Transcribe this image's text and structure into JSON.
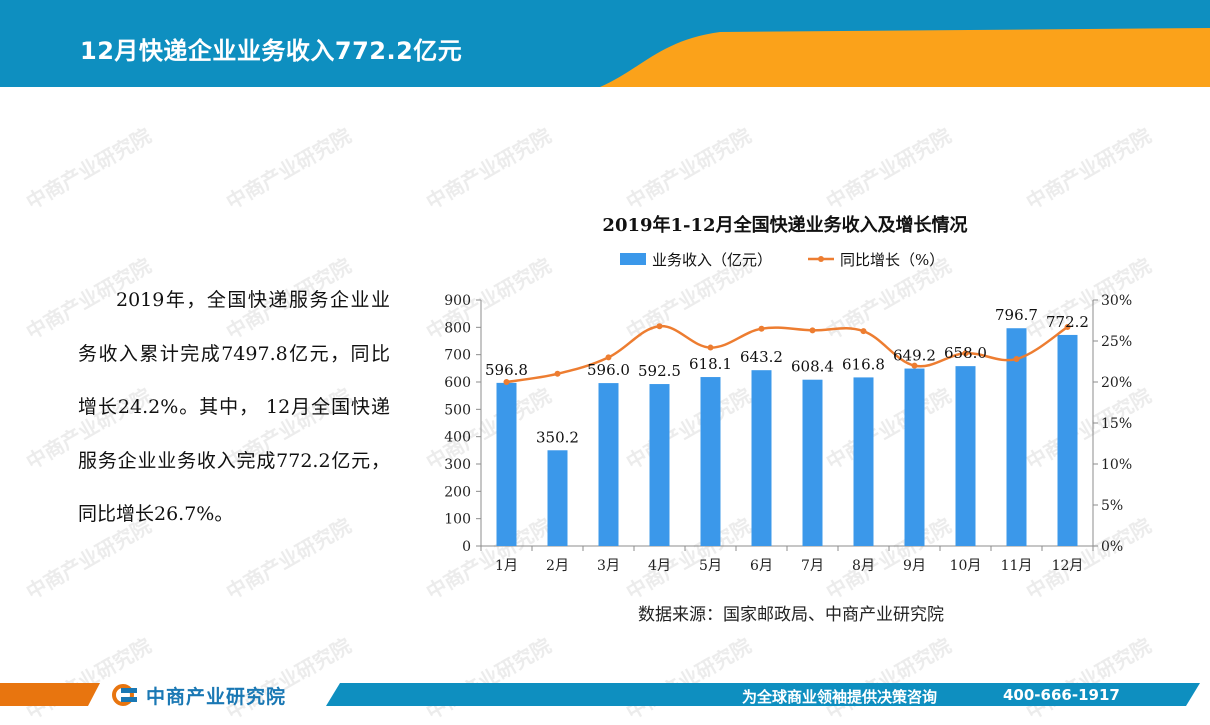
{
  "header": {
    "title": "12月快递企业业务收入772.2亿元",
    "colors": {
      "blue": "#0e8fc0",
      "orange": "#fba21a"
    }
  },
  "body_text": "2019年，全国快递服务企业业务收入累计完成7497.8亿元，同比增长24.2%。其中，  12月全国快递服务企业业务收入完成772.2亿元，同比增长26.7%。",
  "watermark": "中商产业研究院",
  "chart_data": {
    "type": "bar",
    "title": "2019年1-12月全国快递业务收入及增长情况",
    "categories": [
      "1月",
      "2月",
      "3月",
      "4月",
      "5月",
      "6月",
      "7月",
      "8月",
      "9月",
      "10月",
      "11月",
      "12月"
    ],
    "series": [
      {
        "name": "业务收入（亿元）",
        "type": "bar",
        "axis": "left",
        "color": "#3b98ea",
        "values": [
          596.8,
          350.2,
          596.0,
          592.5,
          618.1,
          643.2,
          608.4,
          616.8,
          649.2,
          658.0,
          796.7,
          772.2
        ],
        "labels": [
          "596.8",
          "350.2",
          "596.0",
          "592.5",
          "618.1",
          "643.2",
          "608.4",
          "616.8",
          "649.2",
          "658.0",
          "796.7",
          "772.2"
        ]
      },
      {
        "name": "同比增长（%）",
        "type": "line",
        "axis": "right",
        "color": "#ed7d31",
        "values": [
          20.0,
          21.0,
          23.0,
          26.8,
          24.2,
          26.5,
          26.3,
          26.2,
          22.0,
          23.5,
          22.8,
          26.7
        ]
      }
    ],
    "y_left": {
      "min": 0,
      "max": 900,
      "step": 100,
      "ticks": [
        "0",
        "100",
        "200",
        "300",
        "400",
        "500",
        "600",
        "700",
        "800",
        "900"
      ]
    },
    "y_right": {
      "min": 0,
      "max": 30,
      "step": 5,
      "ticks": [
        "0%",
        "5%",
        "10%",
        "15%",
        "20%",
        "25%",
        "30%"
      ]
    },
    "legend_position": "top",
    "grid": false,
    "source": "数据来源：国家邮政局、中商产业研究院"
  },
  "footer": {
    "logo_text": "中商产业研究院",
    "slogan": "为全球商业领袖提供决策咨询",
    "phone": "400-666-1917",
    "colors": {
      "blue": "#0e8fc0",
      "orange": "#e8750f",
      "logo": "#1a78b4"
    }
  }
}
